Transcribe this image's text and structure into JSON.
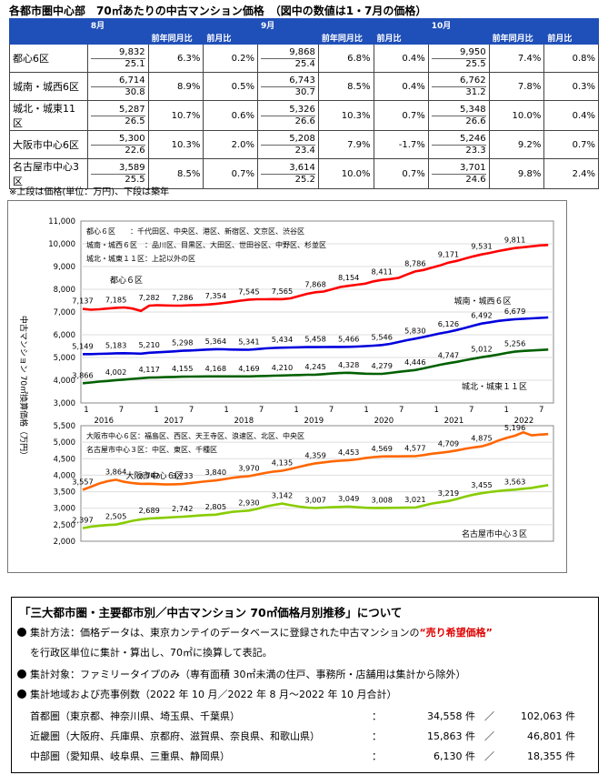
{
  "title": "各都市圏中心部　70㎡あたりの中古マンション価格　（図中の数値は1・7月の価格）",
  "table": {
    "months": [
      "8月",
      "9月",
      "10月"
    ],
    "sub_yoy": "前年同月比",
    "sub_mom": "前月比",
    "rows": [
      {
        "label": "都心6区",
        "cells": [
          [
            "9,832",
            "25.1",
            "6.3%",
            "0.2%"
          ],
          [
            "9,868",
            "25.4",
            "6.8%",
            "0.4%"
          ],
          [
            "9,950",
            "25.5",
            "7.4%",
            "0.8%"
          ]
        ]
      },
      {
        "label": "城南・城西6区",
        "cells": [
          [
            "6,714",
            "30.8",
            "8.9%",
            "0.5%"
          ],
          [
            "6,743",
            "30.7",
            "8.5%",
            "0.4%"
          ],
          [
            "6,762",
            "31.2",
            "7.8%",
            "0.3%"
          ]
        ]
      },
      {
        "label": "城北・城東11区",
        "cells": [
          [
            "5,287",
            "26.5",
            "10.7%",
            "0.6%"
          ],
          [
            "5,326",
            "26.6",
            "10.3%",
            "0.7%"
          ],
          [
            "5,348",
            "26.6",
            "10.0%",
            "0.4%"
          ]
        ]
      },
      {
        "label": "大阪市中心6区",
        "cells": [
          [
            "5,300",
            "22.6",
            "10.3%",
            "2.0%"
          ],
          [
            "5,208",
            "23.4",
            "7.9%",
            "-1.7%"
          ],
          [
            "5,246",
            "23.3",
            "9.2%",
            "0.7%"
          ]
        ]
      },
      {
        "label": "名古屋市中心3区",
        "cells": [
          [
            "3,589",
            "25.5",
            "8.5%",
            "0.7%"
          ],
          [
            "3,614",
            "25.2",
            "10.0%",
            "0.7%"
          ],
          [
            "3,701",
            "24.6",
            "9.8%",
            "2.4%"
          ]
        ]
      }
    ],
    "note": "※上段は価格(単位：万円)、下段は築年"
  },
  "chart_data": [
    {
      "type": "line",
      "panel": "top",
      "ylabel": "中古マンション 70㎡換算価格（万円）",
      "ylim": [
        3000,
        11000
      ],
      "yticks": [
        "3,000",
        "4,000",
        "5,000",
        "6,000",
        "7,000",
        "8,000",
        "9,000",
        "10,000",
        "11,000"
      ],
      "x_month_labels": [
        "1",
        "7",
        "1",
        "7",
        "1",
        "7",
        "1",
        "7",
        "1",
        "7",
        "1",
        "7",
        "1",
        "7"
      ],
      "x_year_labels": [
        "2016",
        "2017",
        "2018",
        "2019",
        "2020",
        "2021",
        "2022"
      ],
      "legend_text": [
        "都心６区　　：千代田区、中央区、港区、新宿区、文京区、渋谷区",
        "城南・城西６区　：品川区、目黒区、大田区、世田谷区、中野区、杉並区",
        "城北・城東１１区：上記以外の区"
      ],
      "series": [
        {
          "name": "都心６区",
          "color": "#ff0000",
          "labels": [
            "7,137",
            "7,185",
            "7,282",
            "7,286",
            "7,354",
            "7,545",
            "7,565",
            "7,868",
            "8,154",
            "8,411",
            "8,786",
            "9,171",
            "9,531",
            "9,811"
          ],
          "values": [
            7137,
            7100,
            7120,
            7150,
            7185,
            7200,
            7150,
            7050,
            7282,
            7300,
            7290,
            7280,
            7286,
            7300,
            7310,
            7330,
            7354,
            7400,
            7450,
            7500,
            7545,
            7560,
            7560,
            7570,
            7565,
            7600,
            7700,
            7800,
            7868,
            7900,
            8000,
            8100,
            8154,
            8200,
            8250,
            8350,
            8411,
            8450,
            8500,
            8650,
            8786,
            8850,
            8950,
            9050,
            9171,
            9250,
            9350,
            9450,
            9531,
            9600,
            9680,
            9750,
            9811,
            9850,
            9890,
            9930,
            9950
          ]
        },
        {
          "name": "城南・城西６区",
          "color": "#0000dd",
          "labels": [
            "5,149",
            "5,183",
            "5,210",
            "5,298",
            "5,364",
            "5,341",
            "5,434",
            "5,458",
            "5,466",
            "5,546",
            "5,830",
            "6,126",
            "6,492",
            "6,679"
          ],
          "values": [
            5149,
            5150,
            5160,
            5170,
            5183,
            5190,
            5180,
            5170,
            5210,
            5230,
            5250,
            5270,
            5298,
            5310,
            5330,
            5350,
            5364,
            5360,
            5350,
            5345,
            5341,
            5370,
            5400,
            5420,
            5434,
            5440,
            5450,
            5455,
            5458,
            5460,
            5462,
            5464,
            5466,
            5480,
            5500,
            5520,
            5546,
            5600,
            5680,
            5760,
            5830,
            5900,
            5980,
            6060,
            6126,
            6210,
            6300,
            6400,
            6492,
            6550,
            6610,
            6650,
            6679,
            6700,
            6720,
            6740,
            6762
          ]
        },
        {
          "name": "城北・城東１１区",
          "color": "#006000",
          "labels": [
            "3,866",
            "4,002",
            "4,117",
            "4,155",
            "4,168",
            "4,169",
            "4,210",
            "4,245",
            "4,328",
            "4,279",
            "4,446",
            "4,747",
            "5,012",
            "5,256"
          ],
          "values": [
            3866,
            3900,
            3940,
            3970,
            4002,
            4030,
            4060,
            4090,
            4117,
            4125,
            4135,
            4145,
            4155,
            4160,
            4163,
            4166,
            4168,
            4168,
            4169,
            4169,
            4169,
            4180,
            4190,
            4200,
            4210,
            4220,
            4230,
            4240,
            4245,
            4270,
            4295,
            4315,
            4328,
            4310,
            4290,
            4280,
            4279,
            4320,
            4370,
            4410,
            4446,
            4520,
            4600,
            4680,
            4747,
            4810,
            4880,
            4950,
            5012,
            5070,
            5130,
            5200,
            5256,
            5287,
            5310,
            5326,
            5348
          ]
        }
      ]
    },
    {
      "type": "line",
      "panel": "bottom",
      "ylim": [
        2000,
        5500
      ],
      "yticks": [
        "2,000",
        "2,500",
        "3,000",
        "3,500",
        "4,000",
        "4,500",
        "5,000",
        "5,500"
      ],
      "legend_text": [
        "大阪市中心６区：福島区、西区、天王寺区、浪速区、北区、中央区",
        "名古屋市中心３区：中区、東区、千種区"
      ],
      "series": [
        {
          "name": "大阪市中心６区",
          "color": "#ff6600",
          "labels": [
            "3,557",
            "3,864",
            "3,742",
            "3,733",
            "3,840",
            "3,970",
            "4,135",
            "4,359",
            "4,453",
            "4,569",
            "4,577",
            "4,709",
            "4,875",
            "5,196"
          ],
          "values": [
            3557,
            3650,
            3750,
            3820,
            3864,
            3800,
            3760,
            3740,
            3742,
            3730,
            3720,
            3725,
            3733,
            3760,
            3790,
            3820,
            3840,
            3880,
            3920,
            3950,
            3970,
            4020,
            4070,
            4110,
            4135,
            4190,
            4250,
            4310,
            4359,
            4390,
            4420,
            4440,
            4453,
            4480,
            4520,
            4550,
            4569,
            4570,
            4572,
            4575,
            4577,
            4610,
            4650,
            4680,
            4709,
            4750,
            4800,
            4840,
            4875,
            4950,
            5050,
            5130,
            5196,
            5300,
            5208,
            5230,
            5246
          ]
        },
        {
          "name": "名古屋市中心３区",
          "color": "#88cc00",
          "labels": [
            "2,397",
            "2,505",
            "2,689",
            "2,742",
            "2,805",
            "2,930",
            "3,142",
            "3,007",
            "3,049",
            "3,008",
            "3,021",
            "3,219",
            "3,455",
            "3,563"
          ],
          "values": [
            2397,
            2440,
            2470,
            2490,
            2505,
            2560,
            2620,
            2660,
            2689,
            2700,
            2715,
            2730,
            2742,
            2760,
            2780,
            2795,
            2805,
            2850,
            2890,
            2910,
            2930,
            2980,
            3050,
            3100,
            3142,
            3090,
            3050,
            3020,
            3007,
            3020,
            3030,
            3040,
            3049,
            3030,
            3015,
            3010,
            3008,
            3012,
            3015,
            3018,
            3021,
            3080,
            3140,
            3180,
            3219,
            3280,
            3350,
            3410,
            3455,
            3490,
            3520,
            3545,
            3563,
            3589,
            3614,
            3660,
            3701
          ]
        }
      ]
    }
  ],
  "info": {
    "title": "「三大都市圏・主要都市別／中古マンション 70㎡価格月別推移」について",
    "method_prefix": "集計方法：価格データは、東京カンテイのデータベースに登録された中古マンションの",
    "method_emph": "“売り希望価格”",
    "method_suffix": "を行政区単位に集計・算出し、70㎡に換算して表記。",
    "target": "集計対象：ファミリータイプのみ（専有面積 30㎡未満の住戸、事務所・店舗用は集計から除外）",
    "area": "集計地域および売事例数（2022 年 10 月／2022 年 8 月～2022 年 10 月合計）",
    "regions": [
      {
        "name": "首都圏（東京都、神奈川県、埼玉県、千葉県）",
        "a": "34,558 件",
        "b": "102,063 件"
      },
      {
        "name": "近畿圏（大阪府、兵庫県、京都府、滋賀県、奈良県、和歌山県）",
        "a": "15,863 件",
        "b": "46,801 件"
      },
      {
        "name": "中部圏（愛知県、岐阜県、三重県、静岡県）",
        "a": "6,130 件",
        "b": "18,355 件"
      }
    ],
    "sep": "／",
    "colon": "："
  }
}
